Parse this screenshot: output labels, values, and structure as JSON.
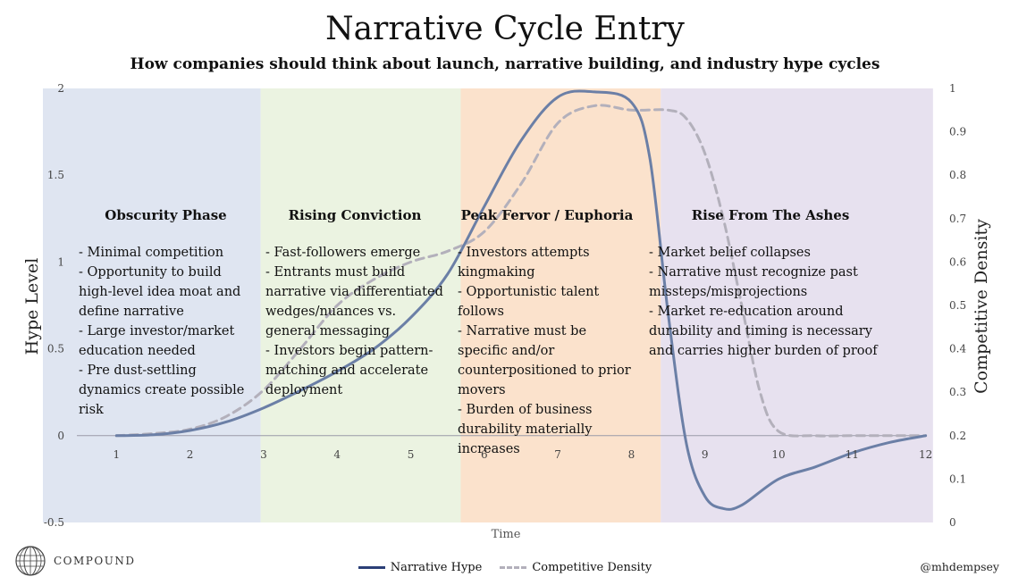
{
  "header": {
    "title": "Narrative Cycle Entry",
    "subtitle": "How companies should think about launch, narrative building, and industry hype cycles"
  },
  "chart_data": {
    "type": "line",
    "xlabel": "Time",
    "ylabel": "Hype Level",
    "y2label": "Competitive Density",
    "xlim": [
      0,
      12.6
    ],
    "ylim": [
      -0.5,
      2
    ],
    "y2lim": [
      0,
      1
    ],
    "x_ticks": [
      "1",
      "2",
      "3",
      "4",
      "5",
      "6",
      "7",
      "8",
      "9",
      "10",
      "11",
      "12"
    ],
    "y_ticks": [
      "-0.5",
      "0",
      "0.5",
      "1",
      "1.5",
      "2"
    ],
    "y2_ticks": [
      "0",
      "0.1",
      "0.2",
      "0.3",
      "0.4",
      "0.5",
      "0.6",
      "0.7",
      "0.8",
      "0.9",
      "1"
    ],
    "grid": false,
    "legend_position": "bottom",
    "series": [
      {
        "name": "Narrative Hype",
        "axis": "left",
        "color": "#6b7fa6",
        "style": "solid",
        "x": [
          1,
          1.5,
          2,
          2.5,
          3,
          3.5,
          4,
          4.5,
          5,
          5.5,
          6,
          6.5,
          7,
          7.5,
          8,
          8.25,
          8.5,
          8.75,
          9,
          9.25,
          9.5,
          10,
          10.5,
          11,
          11.5,
          12
        ],
        "y": [
          0,
          0.005,
          0.03,
          0.08,
          0.16,
          0.26,
          0.37,
          0.5,
          0.68,
          0.93,
          1.32,
          1.7,
          1.95,
          1.98,
          1.92,
          1.6,
          0.7,
          -0.05,
          -0.35,
          -0.42,
          -0.4,
          -0.25,
          -0.18,
          -0.1,
          -0.04,
          0
        ]
      },
      {
        "name": "Competitive Density",
        "axis": "right",
        "color": "#b3b0bb",
        "style": "dashed",
        "x": [
          1,
          1.5,
          2,
          2.5,
          3,
          3.5,
          4,
          4.5,
          5,
          5.5,
          6,
          6.5,
          7,
          7.5,
          8,
          8.5,
          8.75,
          9,
          9.25,
          9.5,
          9.75,
          10,
          10.5,
          11,
          12
        ],
        "y": [
          0.2,
          0.205,
          0.215,
          0.245,
          0.305,
          0.4,
          0.5,
          0.56,
          0.6,
          0.625,
          0.67,
          0.78,
          0.92,
          0.96,
          0.95,
          0.95,
          0.93,
          0.85,
          0.7,
          0.5,
          0.3,
          0.21,
          0.2,
          0.2,
          0.2
        ]
      }
    ],
    "phases": [
      {
        "title": "Obscurity Phase",
        "x_range": [
          0,
          2.96
        ],
        "color": "#dfe5f1",
        "bullets": [
          "- Minimal competition",
          "- Opportunity to build high-level idea moat and define narrative",
          "- Large investor/market education needed",
          "- Pre dust-settling dynamics create possible risk"
        ]
      },
      {
        "title": "Rising Conviction",
        "x_range": [
          2.96,
          5.68
        ],
        "color": "#ebf3e1",
        "bullets": [
          "- Fast-followers emerge",
          "- Entrants must build narrative via differentiated wedges/nuances vs. general messaging",
          "- Investors begin pattern-matching and accelerate deployment"
        ]
      },
      {
        "title": "Peak Fervor / Euphoria",
        "x_range": [
          5.68,
          8.4
        ],
        "color": "#fbe2cc",
        "bullets": [
          "- Investors attempts kingmaking",
          "- Opportunistic talent follows",
          "- Narrative must be specific and/or counterpositioned to prior movers",
          "- Burden of business durability materially increases"
        ]
      },
      {
        "title": "Rise From The Ashes",
        "x_range": [
          8.4,
          12.1
        ],
        "color": "#e7e1ef",
        "bullets": [
          "- Market belief collapses",
          "- Narrative must recognize past missteps/misprojections",
          "- Market re-education around durability and timing is necessary and carries higher burden of proof"
        ]
      }
    ]
  },
  "footer": {
    "logo_text": "COMPOUND",
    "logo_icon": "globe-icon",
    "handle": "@mhdempsey"
  }
}
